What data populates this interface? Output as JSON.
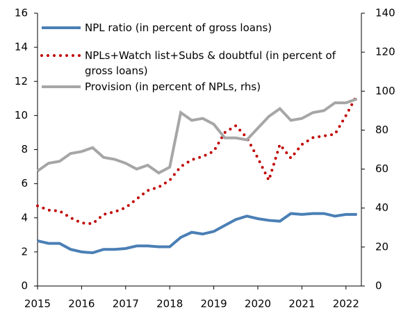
{
  "chart_data": {
    "type": "line",
    "x": [
      2015,
      2015.25,
      2015.5,
      2015.75,
      2016,
      2016.25,
      2016.5,
      2016.75,
      2017,
      2017.25,
      2017.5,
      2017.75,
      2018,
      2018.25,
      2018.5,
      2018.75,
      2019,
      2019.25,
      2019.5,
      2019.75,
      2020,
      2020.25,
      2020.5,
      2020.75,
      2021,
      2021.25,
      2021.5,
      2021.75,
      2022,
      2022.25
    ],
    "series": [
      {
        "name": "NPL ratio (in percent of gross loans)",
        "color": "#4a7fb5",
        "style": "solid",
        "values": [
          2.65,
          2.5,
          2.5,
          2.15,
          2.0,
          1.95,
          2.15,
          2.15,
          2.2,
          2.35,
          2.35,
          2.3,
          2.3,
          2.85,
          3.15,
          3.05,
          3.2,
          3.55,
          3.9,
          4.1,
          3.95,
          3.85,
          3.8,
          4.25,
          4.2,
          4.25,
          4.25,
          4.1,
          4.2,
          4.2
        ]
      },
      {
        "name": "NPLs+Watch list+Subs & doubtful (in percent of gross loans)",
        "color": "#c00000",
        "style": "dotted",
        "values": [
          4.7,
          4.45,
          4.4,
          4.0,
          3.7,
          3.65,
          4.2,
          4.35,
          4.6,
          5.1,
          5.6,
          5.8,
          6.2,
          7.0,
          7.4,
          7.6,
          7.9,
          9.0,
          9.4,
          8.7,
          7.5,
          6.2,
          8.3,
          7.5,
          8.3,
          8.7,
          8.8,
          8.9,
          10.0,
          11.2
        ]
      },
      {
        "name": "Provision (in percent of NPLs, rhs)",
        "color": "#a6a6a6",
        "style": "solid",
        "axis": "y2",
        "values": [
          59,
          63,
          64,
          68,
          69,
          71,
          66,
          65,
          63,
          60,
          62,
          58,
          61,
          89,
          85,
          86,
          83,
          76,
          76,
          75,
          81,
          87,
          91,
          85,
          86,
          89,
          90,
          94,
          94,
          96
        ]
      }
    ],
    "xlim": [
      2015,
      2022.35
    ],
    "xticks": [
      2015,
      2016,
      2017,
      2018,
      2019,
      2020,
      2021,
      2022
    ],
    "ylim": [
      0,
      16
    ],
    "yticks": [
      0,
      2,
      4,
      6,
      8,
      10,
      12,
      14,
      16
    ],
    "y2lim": [
      0,
      140
    ],
    "y2ticks": [
      0,
      20,
      40,
      60,
      80,
      100,
      120,
      140
    ],
    "grid": false
  }
}
